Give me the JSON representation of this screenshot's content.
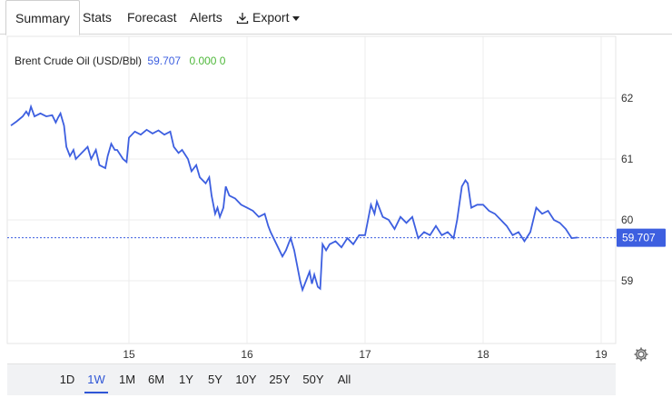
{
  "tabs": [
    {
      "label": "Summary",
      "active": true
    },
    {
      "label": "Stats"
    },
    {
      "label": "Forecast"
    },
    {
      "label": "Alerts"
    },
    {
      "label": "Export"
    }
  ],
  "title": {
    "name": "Brent Crude Oil (USD/Bbl)",
    "price": "59.707",
    "change": "0.000 0"
  },
  "ranges": [
    "1D",
    "1W",
    "1M",
    "6M",
    "1Y",
    "5Y",
    "10Y",
    "25Y",
    "50Y",
    "All"
  ],
  "active_range": "1W",
  "colors": {
    "line": "#3d5fe0",
    "change": "#4fb83b",
    "badge": "#3d5fe0"
  },
  "icons": {
    "export": "download-icon",
    "settings": "gear-icon"
  },
  "chart_data": {
    "type": "line",
    "series": [
      {
        "values": [
          [
            14.0,
            61.55
          ],
          [
            14.05,
            61.62
          ],
          [
            14.1,
            61.7
          ],
          [
            14.13,
            61.78
          ],
          [
            14.15,
            61.72
          ],
          [
            14.17,
            61.86
          ],
          [
            14.2,
            61.7
          ],
          [
            14.25,
            61.75
          ],
          [
            14.3,
            61.7
          ],
          [
            14.35,
            61.72
          ],
          [
            14.38,
            61.6
          ],
          [
            14.4,
            61.68
          ],
          [
            14.42,
            61.75
          ],
          [
            14.45,
            61.55
          ],
          [
            14.47,
            61.2
          ],
          [
            14.5,
            61.05
          ],
          [
            14.53,
            61.15
          ],
          [
            14.55,
            61.0
          ],
          [
            14.6,
            61.1
          ],
          [
            14.65,
            61.2
          ],
          [
            14.68,
            61.0
          ],
          [
            14.72,
            61.15
          ],
          [
            14.75,
            60.9
          ],
          [
            14.8,
            60.85
          ],
          [
            14.82,
            61.05
          ],
          [
            14.85,
            61.25
          ],
          [
            14.88,
            61.15
          ],
          [
            14.9,
            61.15
          ],
          [
            14.95,
            61.0
          ],
          [
            14.98,
            60.95
          ],
          [
            15.0,
            61.35
          ],
          [
            15.05,
            61.45
          ],
          [
            15.1,
            61.4
          ],
          [
            15.15,
            61.48
          ],
          [
            15.2,
            61.42
          ],
          [
            15.25,
            61.47
          ],
          [
            15.3,
            61.4
          ],
          [
            15.35,
            61.45
          ],
          [
            15.38,
            61.2
          ],
          [
            15.42,
            61.1
          ],
          [
            15.45,
            61.15
          ],
          [
            15.5,
            61.0
          ],
          [
            15.53,
            60.8
          ],
          [
            15.57,
            60.9
          ],
          [
            15.6,
            60.7
          ],
          [
            15.65,
            60.6
          ],
          [
            15.68,
            60.7
          ],
          [
            15.7,
            60.4
          ],
          [
            15.73,
            60.1
          ],
          [
            15.75,
            60.2
          ],
          [
            15.77,
            60.05
          ],
          [
            15.8,
            60.2
          ],
          [
            15.82,
            60.55
          ],
          [
            15.85,
            60.4
          ],
          [
            15.9,
            60.35
          ],
          [
            15.95,
            60.25
          ],
          [
            16.0,
            60.2
          ],
          [
            16.05,
            60.15
          ],
          [
            16.1,
            60.05
          ],
          [
            16.15,
            60.1
          ],
          [
            16.18,
            59.9
          ],
          [
            16.2,
            59.8
          ],
          [
            16.25,
            59.6
          ],
          [
            16.3,
            59.4
          ],
          [
            16.33,
            59.5
          ],
          [
            16.37,
            59.7
          ],
          [
            16.4,
            59.5
          ],
          [
            16.42,
            59.3
          ],
          [
            16.45,
            59.0
          ],
          [
            16.47,
            58.85
          ],
          [
            16.5,
            59.0
          ],
          [
            16.53,
            59.15
          ],
          [
            16.55,
            58.95
          ],
          [
            16.57,
            59.1
          ],
          [
            16.6,
            58.9
          ],
          [
            16.62,
            58.87
          ],
          [
            16.64,
            59.6
          ],
          [
            16.67,
            59.5
          ],
          [
            16.7,
            59.6
          ],
          [
            16.75,
            59.65
          ],
          [
            16.8,
            59.55
          ],
          [
            16.85,
            59.7
          ],
          [
            16.9,
            59.6
          ],
          [
            16.95,
            59.75
          ],
          [
            17.0,
            59.75
          ],
          [
            17.05,
            60.25
          ],
          [
            17.08,
            60.1
          ],
          [
            17.1,
            60.3
          ],
          [
            17.15,
            60.05
          ],
          [
            17.2,
            60.0
          ],
          [
            17.25,
            59.85
          ],
          [
            17.3,
            60.05
          ],
          [
            17.35,
            59.95
          ],
          [
            17.4,
            60.05
          ],
          [
            17.45,
            59.7
          ],
          [
            17.5,
            59.8
          ],
          [
            17.55,
            59.75
          ],
          [
            17.6,
            59.9
          ],
          [
            17.65,
            59.75
          ],
          [
            17.7,
            59.8
          ],
          [
            17.75,
            59.7
          ],
          [
            17.78,
            60.0
          ],
          [
            17.82,
            60.55
          ],
          [
            17.85,
            60.65
          ],
          [
            17.87,
            60.6
          ],
          [
            17.9,
            60.2
          ],
          [
            17.95,
            60.25
          ],
          [
            18.0,
            60.25
          ],
          [
            18.05,
            60.15
          ],
          [
            18.1,
            60.1
          ],
          [
            18.15,
            60.0
          ],
          [
            18.2,
            59.9
          ],
          [
            18.25,
            59.75
          ],
          [
            18.3,
            59.8
          ],
          [
            18.35,
            59.65
          ],
          [
            18.4,
            59.8
          ],
          [
            18.45,
            60.2
          ],
          [
            18.5,
            60.1
          ],
          [
            18.55,
            60.15
          ],
          [
            18.6,
            60.0
          ],
          [
            18.65,
            59.95
          ],
          [
            18.7,
            59.85
          ],
          [
            18.75,
            59.7
          ],
          [
            18.8,
            59.71
          ]
        ]
      }
    ],
    "ylim": [
      58.0,
      62.5
    ],
    "yticks": [
      "62",
      "61",
      "60",
      "59"
    ],
    "xticks": [
      "15",
      "16",
      "17",
      "18",
      "19"
    ],
    "last_value": "59.707",
    "grid": true
  }
}
